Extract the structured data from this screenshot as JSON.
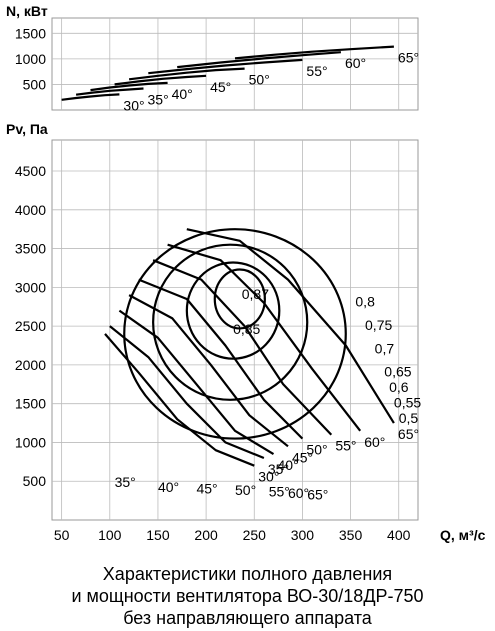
{
  "chart_data": [
    {
      "type": "line",
      "ylabel": "N, кВт",
      "yticks": [
        500,
        1000,
        1500
      ],
      "ylim": [
        0,
        1800
      ],
      "xlim": [
        40,
        420
      ],
      "grid": true,
      "series": [
        {
          "name": "30°",
          "x": [
            50,
            65,
            80,
            95,
            110
          ],
          "values": [
            200,
            235,
            265,
            290,
            305
          ]
        },
        {
          "name": "35°",
          "x": [
            65,
            82,
            100,
            118,
            135
          ],
          "values": [
            300,
            340,
            375,
            400,
            420
          ]
        },
        {
          "name": "40°",
          "x": [
            80,
            100,
            120,
            140,
            160
          ],
          "values": [
            390,
            440,
            480,
            510,
            530
          ]
        },
        {
          "name": "45°",
          "x": [
            105,
            130,
            155,
            180,
            200
          ],
          "values": [
            500,
            560,
            610,
            645,
            670
          ]
        },
        {
          "name": "50°",
          "x": [
            120,
            150,
            180,
            210,
            240
          ],
          "values": [
            600,
            670,
            730,
            780,
            810
          ]
        },
        {
          "name": "55°",
          "x": [
            140,
            180,
            220,
            260,
            300
          ],
          "values": [
            720,
            800,
            870,
            930,
            980
          ]
        },
        {
          "name": "60°",
          "x": [
            170,
            215,
            260,
            305,
            340
          ],
          "values": [
            840,
            930,
            1010,
            1080,
            1130
          ]
        },
        {
          "name": "65°",
          "x": [
            230,
            270,
            310,
            350,
            395
          ],
          "values": [
            1010,
            1080,
            1140,
            1190,
            1240
          ]
        }
      ]
    },
    {
      "type": "line",
      "xlabel": "Q, м³/с",
      "ylabel": "Pv, Па",
      "xticks": [
        50,
        100,
        150,
        200,
        250,
        300,
        350,
        400
      ],
      "yticks": [
        500,
        1000,
        1500,
        2000,
        2500,
        3000,
        3500,
        4000,
        4500
      ],
      "xlim": [
        40,
        420
      ],
      "ylim": [
        0,
        4900
      ],
      "grid": true,
      "blade_angle_labels": [
        "30°",
        "35°",
        "40°",
        "45°",
        "50°",
        "55°",
        "60°",
        "65°"
      ],
      "bottom_angle_labels": [
        "35°",
        "40°",
        "45°",
        "50°",
        "55°",
        "60°",
        "65°"
      ],
      "efficiency_labels": [
        "0,87",
        "0,85",
        "0,8",
        "0,75",
        "0,7",
        "0,65",
        "0,6",
        "0,55",
        "0,5"
      ],
      "series": [
        {
          "name": "30°",
          "x": [
            95,
            130,
            170,
            210,
            250
          ],
          "values": [
            2400,
            1900,
            1300,
            900,
            700
          ]
        },
        {
          "name": "35°",
          "x": [
            100,
            140,
            180,
            220,
            260
          ],
          "values": [
            2500,
            2100,
            1500,
            1000,
            800
          ]
        },
        {
          "name": "40°",
          "x": [
            110,
            150,
            190,
            230,
            270
          ],
          "values": [
            2700,
            2350,
            1750,
            1150,
            850
          ]
        },
        {
          "name": "45°",
          "x": [
            120,
            165,
            205,
            245,
            285
          ],
          "values": [
            2900,
            2600,
            2000,
            1350,
            950
          ]
        },
        {
          "name": "50°",
          "x": [
            130,
            180,
            220,
            260,
            300
          ],
          "values": [
            3100,
            2850,
            2250,
            1550,
            1050
          ]
        },
        {
          "name": "55°",
          "x": [
            145,
            195,
            240,
            280,
            330
          ],
          "values": [
            3350,
            3100,
            2500,
            1750,
            1100
          ]
        },
        {
          "name": "60°",
          "x": [
            160,
            215,
            260,
            310,
            360
          ],
          "values": [
            3550,
            3350,
            2800,
            1950,
            1150
          ]
        },
        {
          "name": "65°",
          "x": [
            180,
            235,
            285,
            345,
            395
          ],
          "values": [
            3750,
            3600,
            3100,
            2250,
            1250
          ]
        }
      ]
    }
  ],
  "caption": {
    "line1": "Характеристики полного давления",
    "line2": "и мощности вентилятора ВО-30/18ДР-750",
    "line3": "без направляющего аппарата"
  }
}
